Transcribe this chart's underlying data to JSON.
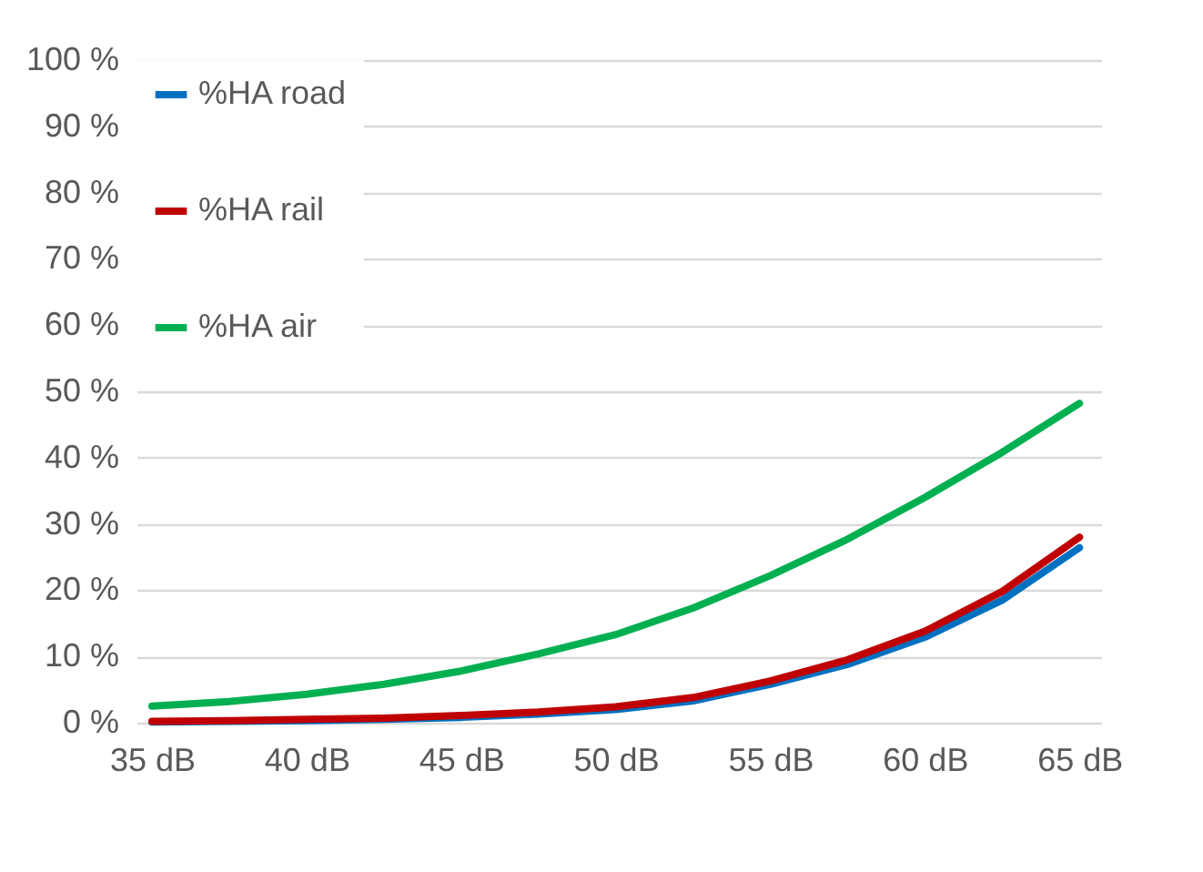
{
  "chart_data": {
    "type": "line",
    "x": [
      35,
      37.5,
      40,
      42.5,
      45,
      47.5,
      50,
      52.5,
      55,
      57.5,
      60,
      62.5,
      65
    ],
    "series": [
      {
        "name": "%HA road",
        "color": "#0070c0",
        "values": [
          0.1,
          0.2,
          0.3,
          0.5,
          0.8,
          1.3,
          2.0,
          3.3,
          5.8,
          8.8,
          12.9,
          18.5,
          26.4
        ]
      },
      {
        "name": "%HA rail",
        "color": "#c00000",
        "values": [
          0.2,
          0.3,
          0.5,
          0.7,
          1.1,
          1.6,
          2.4,
          3.8,
          6.3,
          9.5,
          13.8,
          19.8,
          28
        ]
      },
      {
        "name": "%HA air",
        "color": "#00b050",
        "values": [
          2.5,
          3.2,
          4.3,
          5.8,
          7.8,
          10.4,
          13.3,
          17.3,
          22.2,
          27.7,
          34.0,
          40.8,
          48.2
        ]
      }
    ],
    "xlim": [
      34.5,
      65.7
    ],
    "xticks": [
      {
        "value": 35,
        "label": "35  dB"
      },
      {
        "value": 40,
        "label": "40  dB"
      },
      {
        "value": 45,
        "label": "45  dB"
      },
      {
        "value": 50,
        "label": "50  dB"
      },
      {
        "value": 55,
        "label": "55  dB"
      },
      {
        "value": 60,
        "label": "60  dB"
      },
      {
        "value": 65,
        "label": "65  dB"
      }
    ],
    "ylim": [
      0,
      100
    ],
    "yticks": [
      {
        "value": 0,
        "label": "0  %"
      },
      {
        "value": 10,
        "label": "10  %"
      },
      {
        "value": 20,
        "label": "20  %"
      },
      {
        "value": 30,
        "label": "30  %"
      },
      {
        "value": 40,
        "label": "40  %"
      },
      {
        "value": 50,
        "label": "50  %"
      },
      {
        "value": 60,
        "label": "60  %"
      },
      {
        "value": 70,
        "label": "70  %"
      },
      {
        "value": 80,
        "label": "80  %"
      },
      {
        "value": 90,
        "label": "90  %"
      },
      {
        "value": 100,
        "label": "100  %"
      }
    ],
    "grid": "y",
    "legend": "top left",
    "marker": "none",
    "line_style": "solid"
  }
}
